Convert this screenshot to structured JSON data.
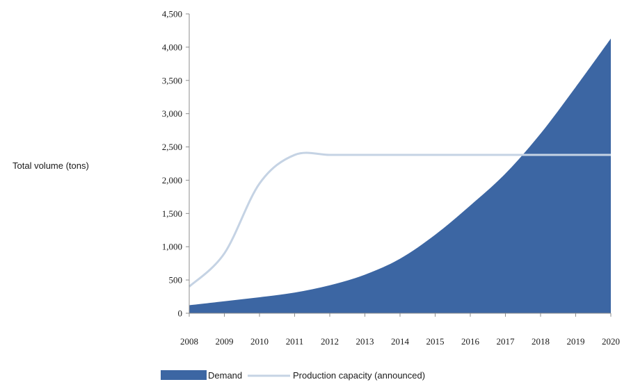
{
  "chart_data": {
    "type": "area",
    "ylabel": "Total volume (tons)",
    "x": [
      "2008",
      "2009",
      "2010",
      "2011",
      "2012",
      "2013",
      "2014",
      "2015",
      "2016",
      "2017",
      "2018",
      "2019",
      "2020"
    ],
    "y_ticks": [
      "0",
      "500",
      "1,000",
      "1,500",
      "2,000",
      "2,500",
      "3,000",
      "3,500",
      "4,000",
      "4,500"
    ],
    "ylim": [
      0,
      4500
    ],
    "grid": false,
    "legend_position": "bottom",
    "series": [
      {
        "name": "Demand",
        "kind": "area",
        "color": "#3c66a3",
        "values": [
          120,
          180,
          240,
          310,
          420,
          580,
          820,
          1180,
          1620,
          2100,
          2700,
          3400,
          4130
        ]
      },
      {
        "name": "Production capacity (announced)",
        "kind": "line",
        "color": "#c5d3e4",
        "values": [
          400,
          900,
          1950,
          2380,
          2380,
          2380,
          2380,
          2380,
          2380,
          2380,
          2380,
          2380,
          2380
        ]
      }
    ]
  }
}
